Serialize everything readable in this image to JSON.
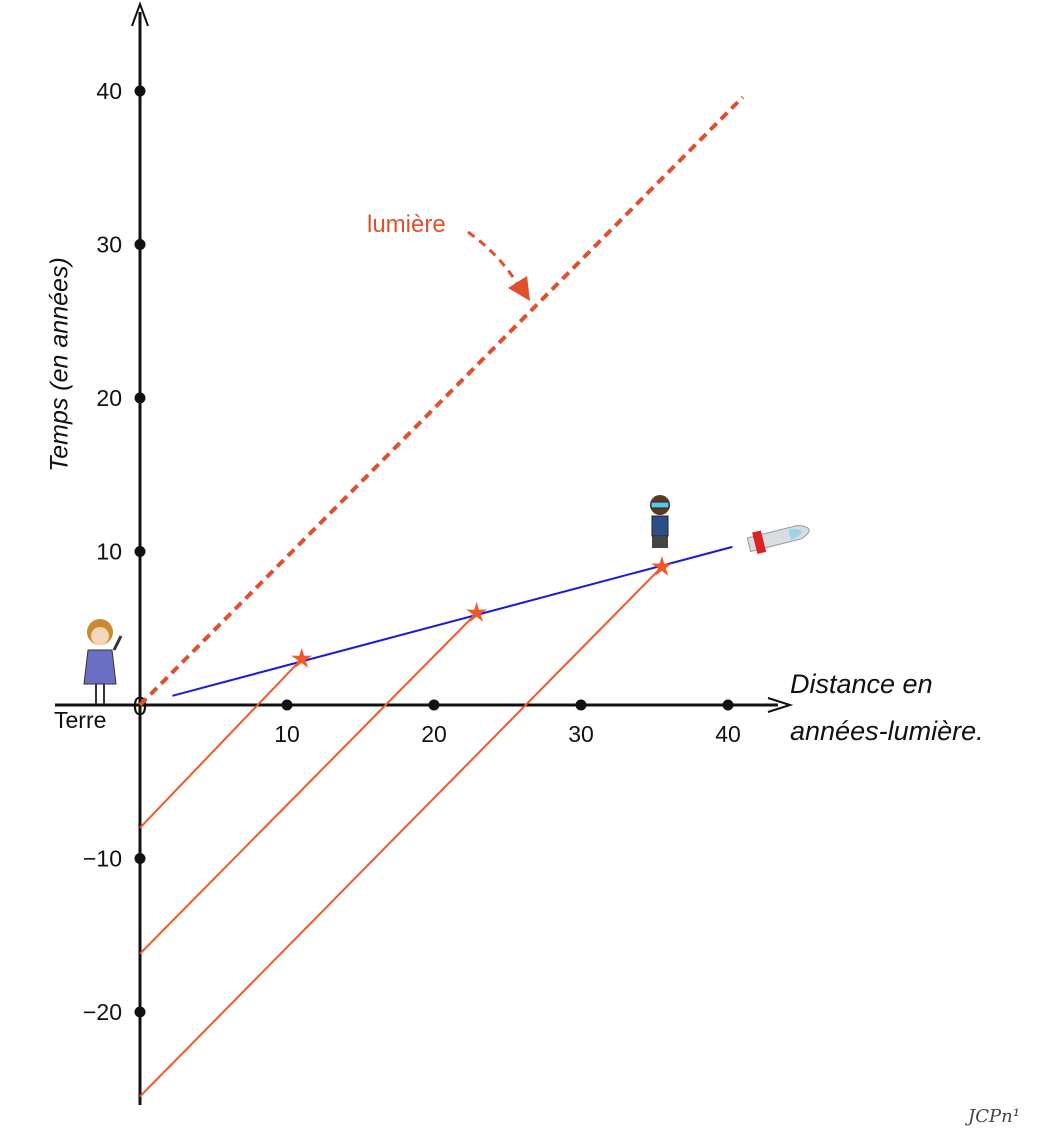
{
  "chart_data": {
    "type": "line",
    "title": "",
    "xlabel": "Distance en années-lumière.",
    "xlabel_lines": [
      "Distance en",
      "années-lumière."
    ],
    "ylabel": "Temps (en années)",
    "xlim": [
      -9,
      45
    ],
    "ylim": [
      -26,
      46
    ],
    "x_ticks": [
      10,
      20,
      30,
      40
    ],
    "y_ticks": [
      -20,
      -10,
      10,
      20,
      30,
      40
    ],
    "origin_label": "0",
    "origin_name": "Terre",
    "annotation": "lumière",
    "series": [
      {
        "name": "lumière",
        "style": "dashed",
        "color": "#e0502a",
        "points": [
          [
            0,
            0
          ],
          [
            41,
            39.6
          ]
        ]
      },
      {
        "name": "fusée",
        "style": "solid",
        "color": "#1a1adf",
        "points": [
          [
            2.2,
            0.6
          ],
          [
            40.3,
            10.3
          ]
        ]
      },
      {
        "name": "signal-1",
        "style": "solid",
        "color": "#f0582a",
        "points": [
          [
            11,
            3.0
          ],
          [
            0,
            -8.0
          ]
        ]
      },
      {
        "name": "signal-2",
        "style": "solid",
        "color": "#f0582a",
        "points": [
          [
            22.9,
            6.0
          ],
          [
            0,
            -16.2
          ]
        ]
      },
      {
        "name": "signal-3",
        "style": "solid",
        "color": "#f0582a",
        "points": [
          [
            35.5,
            9.0
          ],
          [
            0,
            -25.5
          ]
        ]
      }
    ],
    "events": [
      [
        11,
        3.0
      ],
      [
        22.9,
        6.0
      ],
      [
        35.5,
        9.0
      ]
    ]
  },
  "signature": "JCPn¹"
}
